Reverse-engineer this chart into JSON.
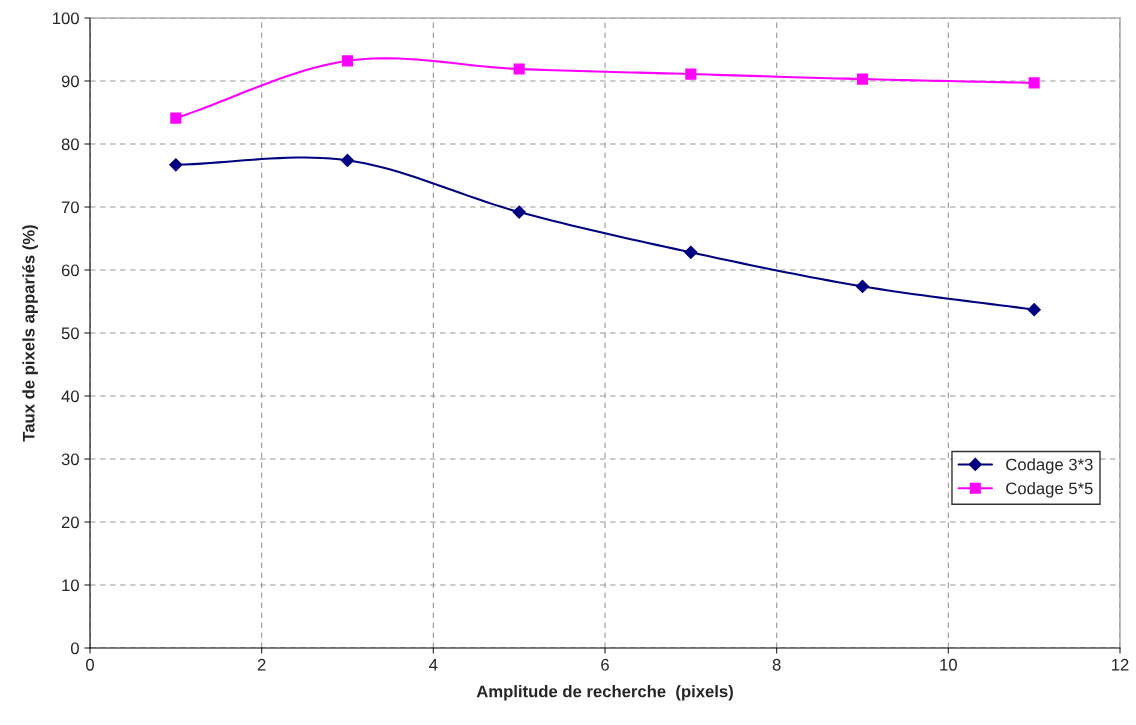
{
  "chart_data": {
    "type": "line",
    "xlabel": "Amplitude de recherche  (pixels)",
    "ylabel": "Taux de pixels appariés (%)",
    "x": [
      1,
      3,
      5,
      7,
      9,
      11
    ],
    "series": [
      {
        "name": "Codage 3*3",
        "color": "#000080",
        "marker": "diamond",
        "values": [
          76.7,
          77.4,
          69.2,
          62.8,
          57.4,
          53.7
        ]
      },
      {
        "name": "Codage 5*5",
        "color": "#ff00ff",
        "marker": "square",
        "values": [
          84.1,
          93.2,
          91.9,
          91.1,
          90.3,
          89.7
        ]
      }
    ],
    "xlim": [
      0,
      12
    ],
    "xticks": [
      0,
      2,
      4,
      6,
      8,
      10,
      12
    ],
    "ylim": [
      0,
      100
    ],
    "yticks": [
      0,
      10,
      20,
      30,
      40,
      50,
      60,
      70,
      80,
      90,
      100
    ],
    "grid": true,
    "legend": "right",
    "line_style": "solid"
  }
}
